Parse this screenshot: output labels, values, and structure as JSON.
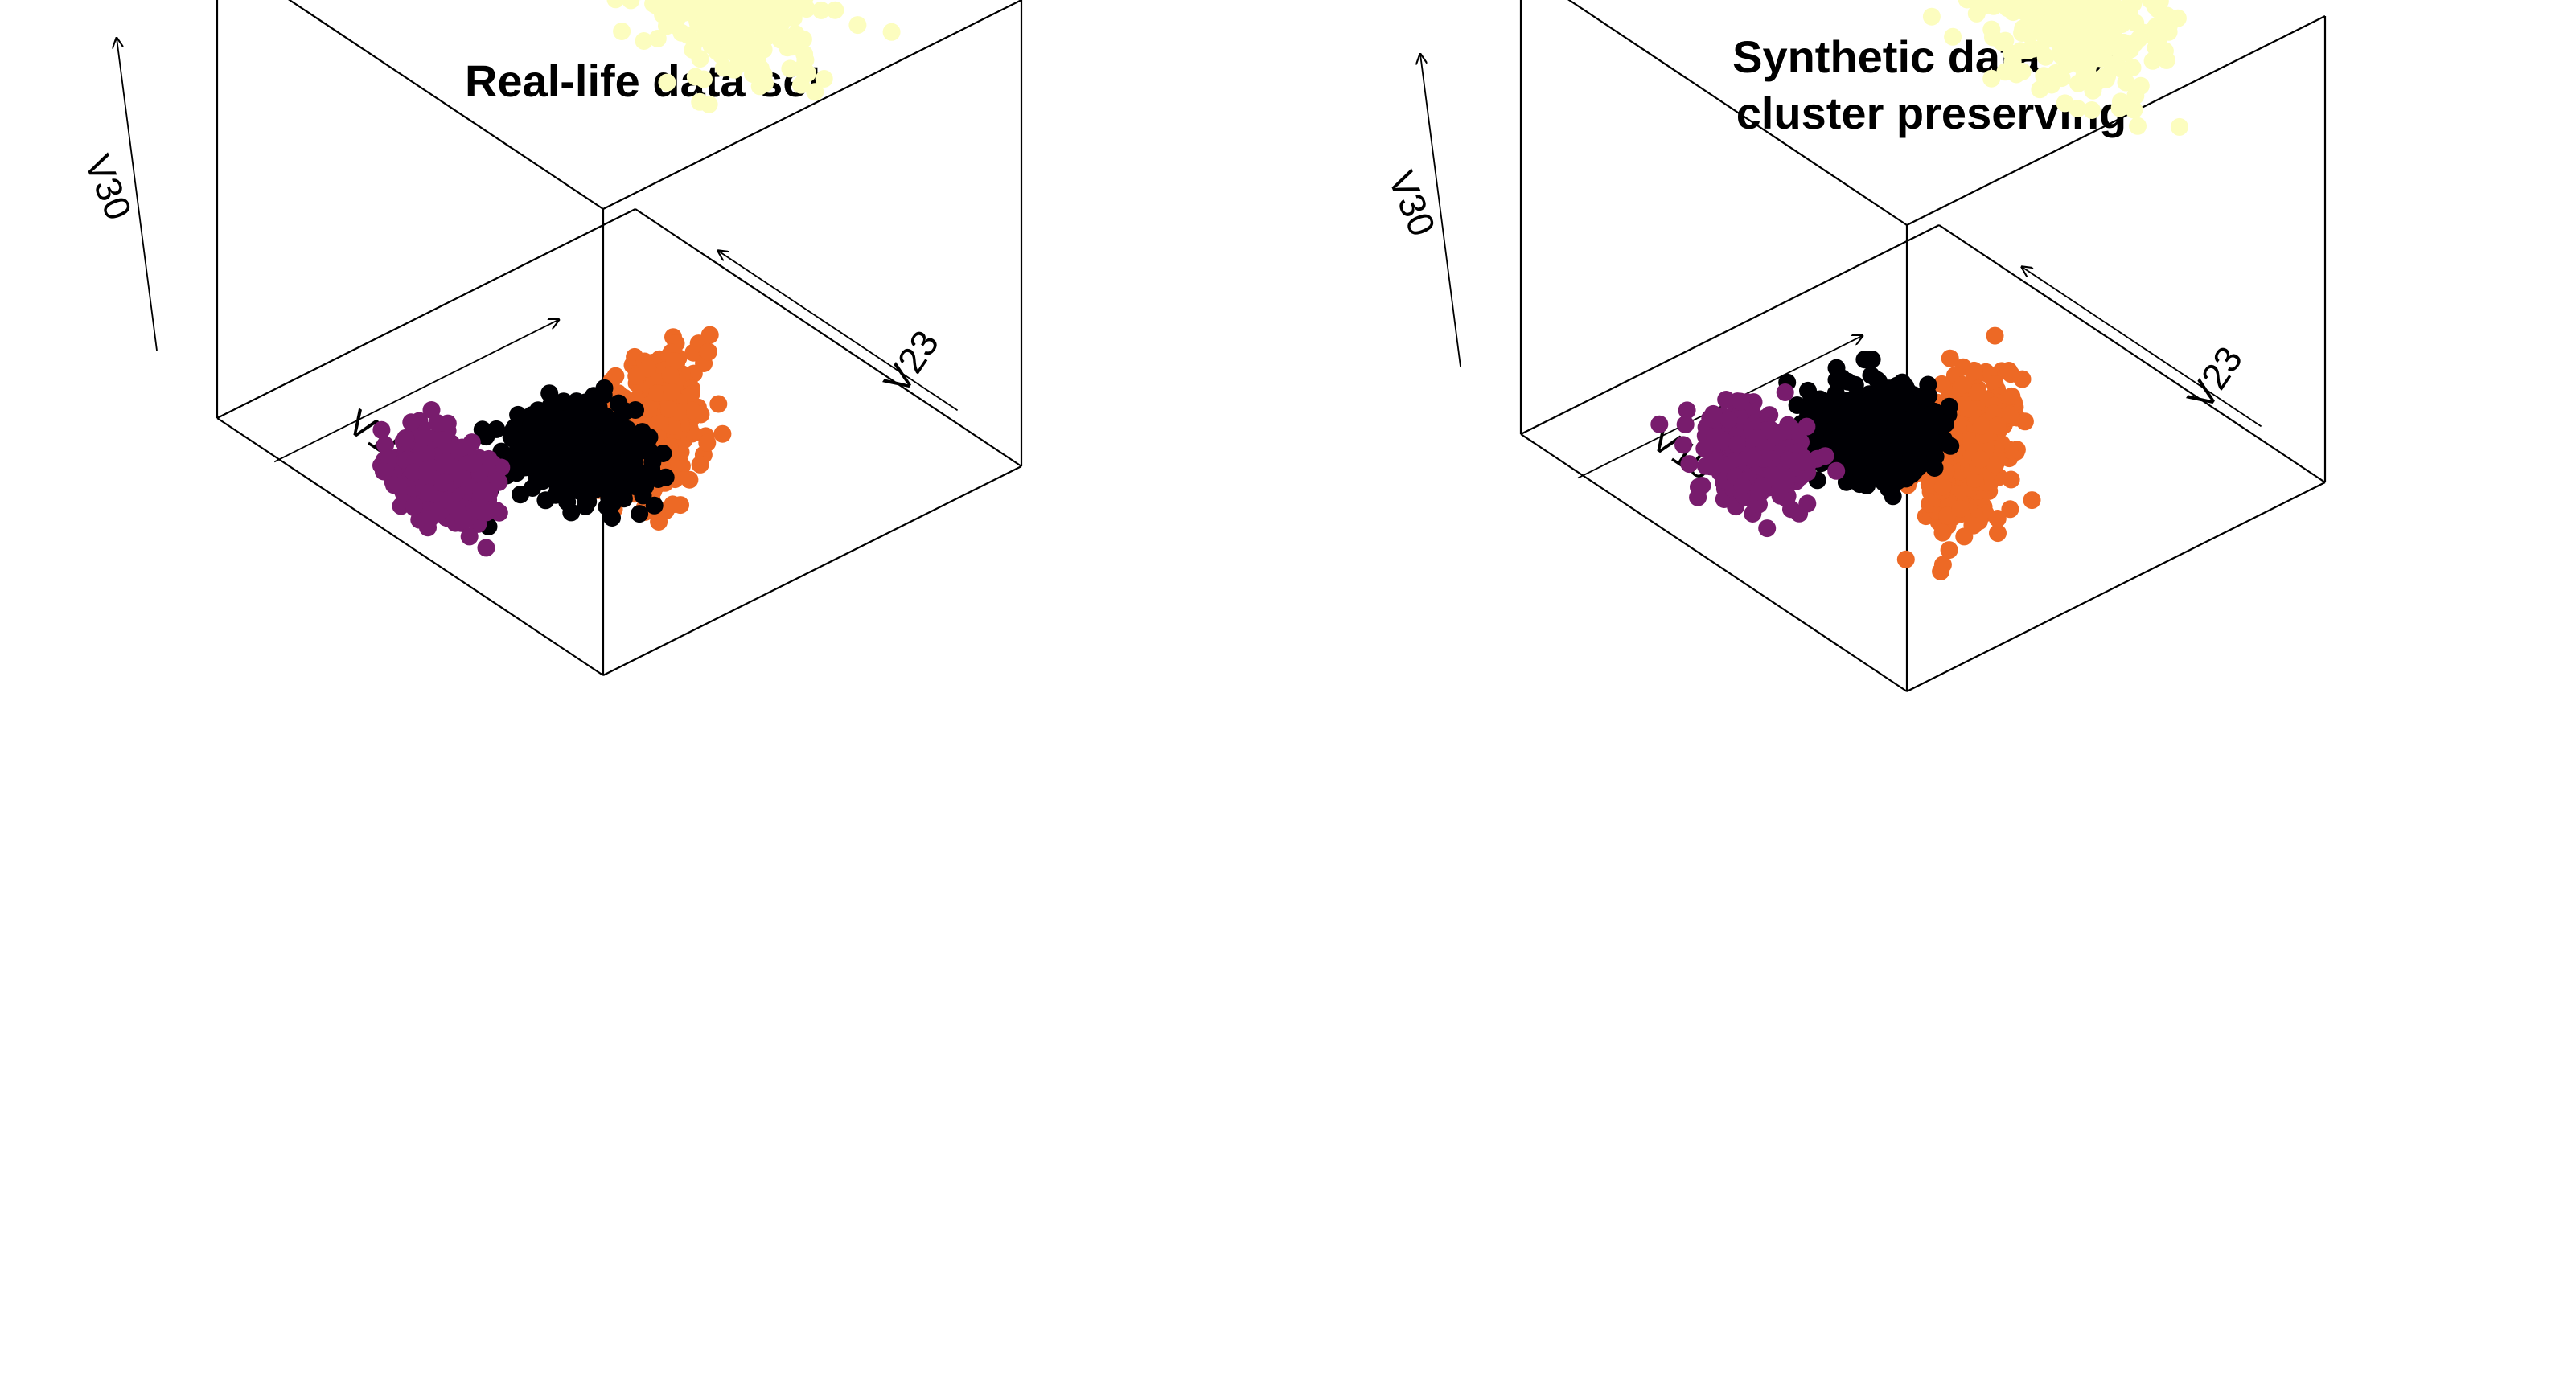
{
  "chart_data": [
    {
      "type": "scatter",
      "projection": "3d",
      "title": "Real-life data set",
      "axes": {
        "x": "V10",
        "y": "V23",
        "z": "V30"
      },
      "grid": false,
      "legend": "none",
      "note_on_values": "no tick labels printed; coordinates are relative positions within the unit cube (0-1)",
      "series": [
        {
          "color": "#fcfdbf",
          "n": 650,
          "center": [
            0.62,
            0.86,
            0.78
          ],
          "spread": [
            0.09,
            0.07,
            0.08
          ]
        },
        {
          "color": "#ed6925",
          "n": 450,
          "center": [
            0.07,
            0.18,
            0.4
          ],
          "spread": [
            0.02,
            0.05,
            0.07
          ]
        },
        {
          "color": "#000004",
          "n": 500,
          "center": [
            0.46,
            0.36,
            0.06
          ],
          "spread": [
            0.06,
            0.06,
            0.03
          ]
        },
        {
          "color": "#781c6d",
          "n": 450,
          "center": [
            0.55,
            0.12,
            0.06
          ],
          "spread": [
            0.05,
            0.035,
            0.03
          ]
        }
      ]
    },
    {
      "type": "scatter",
      "projection": "3d",
      "title": "Synthetic data set,\ncluster preserving",
      "title_lines": [
        "Synthetic data set,",
        "cluster preserving"
      ],
      "axes": {
        "x": "V10",
        "y": "V23",
        "z": "V30"
      },
      "grid": false,
      "legend": "none",
      "note_on_values": "no tick labels printed; coordinates are relative positions within the unit cube (0-1)",
      "series": [
        {
          "color": "#fcfdbf",
          "n": 650,
          "center": [
            0.58,
            0.92,
            0.78
          ],
          "spread": [
            0.09,
            0.07,
            0.08
          ]
        },
        {
          "color": "#ed6925",
          "n": 450,
          "center": [
            0.07,
            0.2,
            0.38
          ],
          "spread": [
            0.02,
            0.05,
            0.07
          ]
        },
        {
          "color": "#000004",
          "n": 500,
          "center": [
            0.55,
            0.42,
            0.07
          ],
          "spread": [
            0.06,
            0.06,
            0.03
          ]
        },
        {
          "color": "#781c6d",
          "n": 450,
          "center": [
            0.62,
            0.2,
            0.07
          ],
          "spread": [
            0.05,
            0.04,
            0.03
          ]
        }
      ]
    }
  ]
}
